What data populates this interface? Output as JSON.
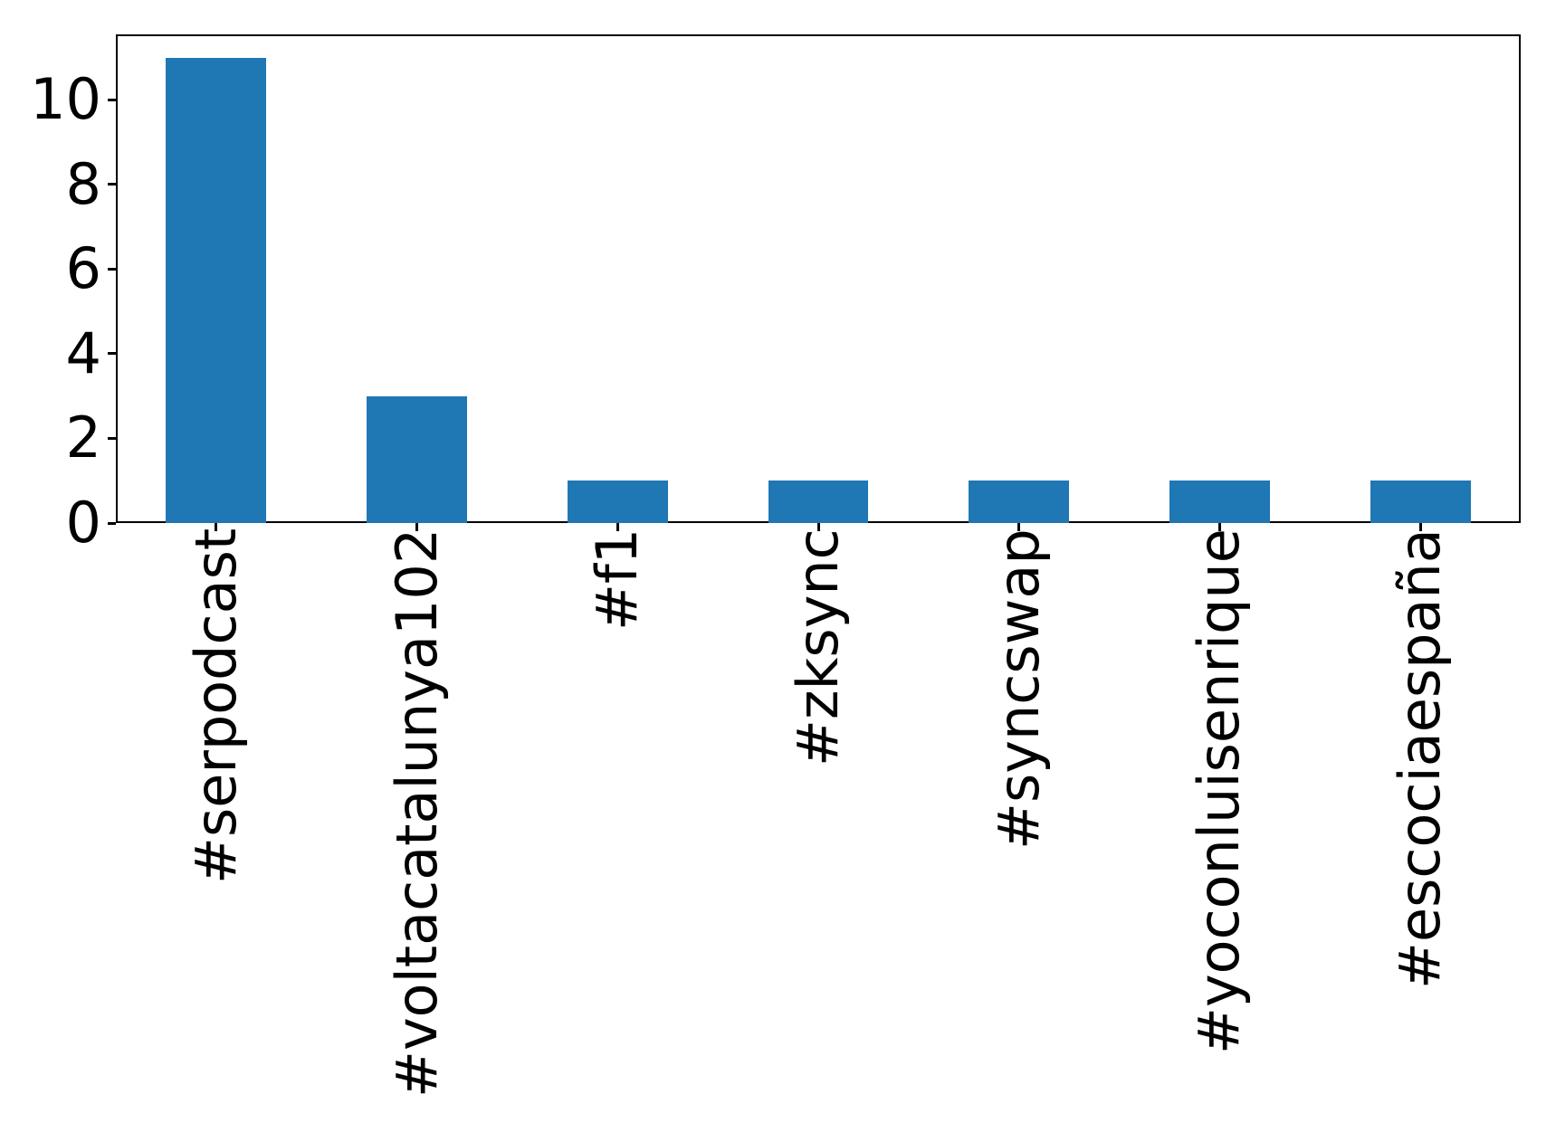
{
  "chart_data": {
    "type": "bar",
    "title": "",
    "xlabel": "",
    "ylabel": "",
    "categories": [
      "#serpodcast",
      "#voltacatalunya102",
      "#f1",
      "#zksync",
      "#syncswap",
      "#yoconluisenrique",
      "#escociaespaña"
    ],
    "values": [
      11,
      3,
      1,
      1,
      1,
      1,
      1
    ],
    "yticks": [
      0,
      2,
      4,
      6,
      8,
      10
    ],
    "ylim": [
      0,
      11.55
    ],
    "bar_color": "#1f77b4",
    "bar_width_fraction": 0.5,
    "x_tick_label_rotation_deg": 90,
    "grid": false,
    "legend": "none",
    "background_color": "#ffffff",
    "axis_color": "#000000"
  }
}
